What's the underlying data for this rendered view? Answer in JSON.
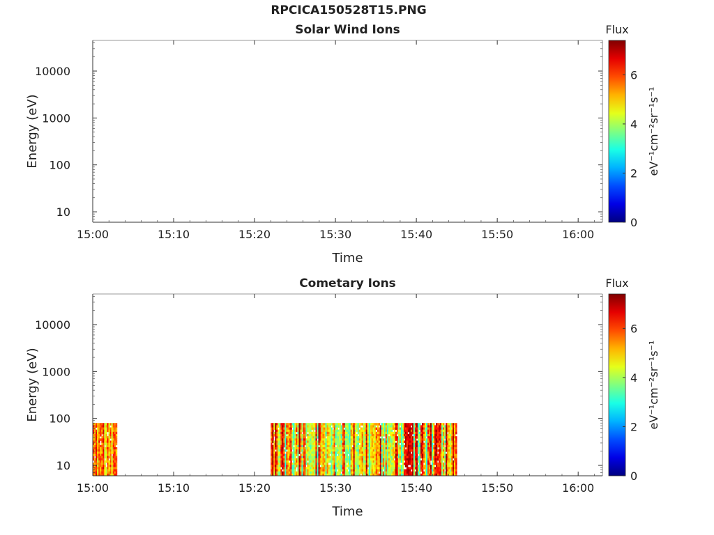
{
  "title": "RPCICA150528T15.PNG",
  "chart_data": [
    {
      "type": "heatmap",
      "title": "Solar Wind Ions",
      "xlabel": "Time",
      "ylabel": "Energy (eV)",
      "x_ticks": [
        "15:00",
        "15:10",
        "15:20",
        "15:30",
        "15:40",
        "15:50",
        "16:00"
      ],
      "xlim": [
        "15:00",
        "16:03"
      ],
      "y_scale": "log",
      "y_ticks": [
        10,
        100,
        1000,
        10000
      ],
      "ylim": [
        6,
        45000
      ],
      "colorbar": {
        "label": "Flux",
        "units": "eV⁻¹cm⁻²sr⁻¹s⁻¹",
        "ticks": [
          0,
          2,
          4,
          6
        ],
        "range": [
          0,
          7.4
        ],
        "colormap": "jet"
      },
      "blocks": []
    },
    {
      "type": "heatmap",
      "title": "Cometary Ions",
      "xlabel": "Time",
      "ylabel": "Energy (eV)",
      "x_ticks": [
        "15:00",
        "15:10",
        "15:20",
        "15:30",
        "15:40",
        "15:50",
        "16:00"
      ],
      "xlim": [
        "15:00",
        "16:03"
      ],
      "y_scale": "log",
      "y_ticks": [
        10,
        100,
        1000,
        10000
      ],
      "ylim": [
        6,
        45000
      ],
      "colorbar": {
        "label": "Flux",
        "units": "eV⁻¹cm⁻²sr⁻¹s⁻¹",
        "ticks": [
          0,
          2,
          4,
          6
        ],
        "range": [
          0,
          7.4
        ],
        "colormap": "jet"
      },
      "blocks": [
        {
          "t_start": "15:00",
          "t_end": "15:03",
          "e_min": 6,
          "e_max": 80,
          "flux_min": 4.2,
          "flux_max": 6.8
        },
        {
          "t_start": "15:22",
          "t_end": "15:45",
          "e_min": 6,
          "e_max": 80,
          "flux_min": 3.0,
          "flux_max": 7.2
        }
      ]
    }
  ]
}
